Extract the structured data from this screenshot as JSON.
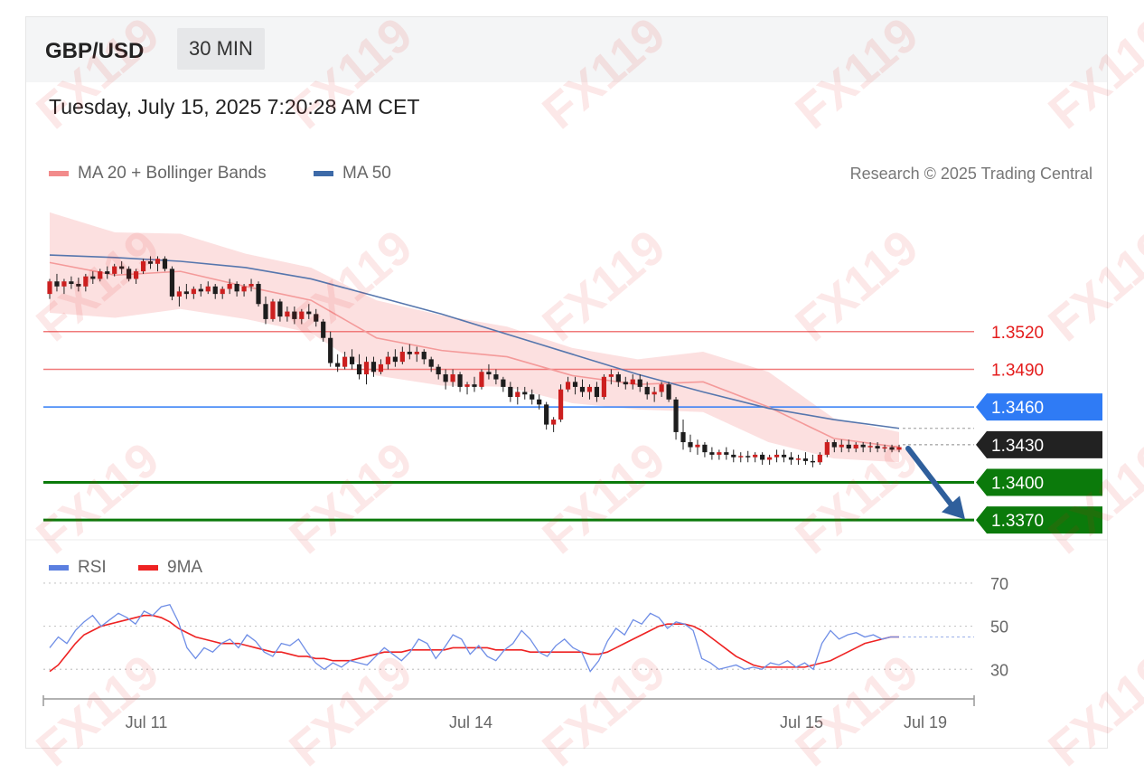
{
  "header": {
    "symbol": "GBP/USD",
    "timeframe": "30 MIN",
    "timestamp": "Tuesday, July 15, 2025 7:20:28 AM CET"
  },
  "legend": {
    "ma20": {
      "label": "MA 20 + Bollinger Bands",
      "color": "#f28b8b"
    },
    "ma50": {
      "label": "MA 50",
      "color": "#3d6aa8"
    },
    "rsi": {
      "label": "RSI",
      "color": "#5b7fe0"
    },
    "rsi_ma": {
      "label": "9MA",
      "color": "#ee2222"
    }
  },
  "credit": "Research © 2025 Trading Central",
  "watermark": "FX119",
  "chart_data": [
    {
      "type": "line",
      "subtype": "candlestick",
      "ylim": [
        1.3355,
        1.363
      ],
      "x_ticks": [
        "Jul 11",
        "Jul 14",
        "Jul 15",
        "Jul 19"
      ],
      "current_price": {
        "value": "1.3430",
        "price": 1.343,
        "color": "#222222"
      },
      "arrow": {
        "from": 1.3427,
        "to": 1.3372,
        "direction": "down",
        "color": "#2f5f9c"
      },
      "levels": [
        {
          "label": "1.3520",
          "price": 1.352,
          "kind": "resistance",
          "color": "#f07a7a",
          "text_color": "#e41c1c"
        },
        {
          "label": "1.3490",
          "price": 1.349,
          "kind": "resistance",
          "color": "#f07a7a",
          "text_color": "#e41c1c"
        },
        {
          "label": "1.3460",
          "price": 1.346,
          "kind": "pivot",
          "color": "#2f7bf5",
          "text_color": "#ffffff"
        },
        {
          "label": "1.3400",
          "price": 1.34,
          "kind": "support",
          "color": "#0b7a0b",
          "text_color": "#ffffff"
        },
        {
          "label": "1.3370",
          "price": 1.337,
          "kind": "support",
          "color": "#0b7a0b",
          "text_color": "#ffffff"
        }
      ],
      "series": [
        {
          "name": "MA 50",
          "values": [
            1.3581,
            1.3579,
            1.3576,
            1.3571,
            1.3562,
            1.3548,
            1.3534,
            1.3518,
            1.3502,
            1.3486,
            1.3472,
            1.3459,
            1.345,
            1.3443
          ]
        },
        {
          "name": "MA 20",
          "values": [
            1.3575,
            1.3565,
            1.3568,
            1.3556,
            1.3545,
            1.3515,
            1.3505,
            1.35,
            1.3485,
            1.3478,
            1.348,
            1.346,
            1.3435,
            1.3428
          ]
        }
      ],
      "candles": [
        [
          1.355,
          1.3562,
          1.3546,
          1.356
        ],
        [
          1.356,
          1.3566,
          1.3552,
          1.3556
        ],
        [
          1.3556,
          1.3562,
          1.355,
          1.356
        ],
        [
          1.356,
          1.3564,
          1.3554,
          1.3558
        ],
        [
          1.3558,
          1.3563,
          1.3552,
          1.3556
        ],
        [
          1.3556,
          1.3566,
          1.3552,
          1.3564
        ],
        [
          1.3564,
          1.3568,
          1.3558,
          1.3562
        ],
        [
          1.3562,
          1.357,
          1.356,
          1.3568
        ],
        [
          1.3568,
          1.3572,
          1.3562,
          1.3566
        ],
        [
          1.3566,
          1.3574,
          1.3564,
          1.3572
        ],
        [
          1.3572,
          1.3576,
          1.3566,
          1.357
        ],
        [
          1.357,
          1.3572,
          1.356,
          1.3562
        ],
        [
          1.3562,
          1.357,
          1.3558,
          1.3568
        ],
        [
          1.3568,
          1.3578,
          1.3566,
          1.3576
        ],
        [
          1.3576,
          1.358,
          1.357,
          1.3574
        ],
        [
          1.3574,
          1.358,
          1.3568,
          1.3578
        ],
        [
          1.3578,
          1.358,
          1.3568,
          1.357
        ],
        [
          1.357,
          1.3572,
          1.3545,
          1.3548
        ],
        [
          1.3548,
          1.3556,
          1.354,
          1.3552
        ],
        [
          1.3552,
          1.3558,
          1.3546,
          1.355
        ],
        [
          1.355,
          1.3556,
          1.3546,
          1.3554
        ],
        [
          1.3554,
          1.3558,
          1.3548,
          1.3552
        ],
        [
          1.3552,
          1.356,
          1.355,
          1.3556
        ],
        [
          1.3556,
          1.3558,
          1.3546,
          1.355
        ],
        [
          1.355,
          1.3556,
          1.3546,
          1.3554
        ],
        [
          1.3554,
          1.3562,
          1.355,
          1.3558
        ],
        [
          1.3558,
          1.356,
          1.3548,
          1.3552
        ],
        [
          1.3552,
          1.3558,
          1.3548,
          1.3556
        ],
        [
          1.3556,
          1.3562,
          1.3552,
          1.3558
        ],
        [
          1.3558,
          1.356,
          1.354,
          1.3542
        ],
        [
          1.3542,
          1.3548,
          1.3526,
          1.353
        ],
        [
          1.353,
          1.3546,
          1.3528,
          1.3544
        ],
        [
          1.3544,
          1.3546,
          1.3528,
          1.3532
        ],
        [
          1.3532,
          1.354,
          1.3528,
          1.3536
        ],
        [
          1.3536,
          1.354,
          1.3526,
          1.353
        ],
        [
          1.353,
          1.3538,
          1.3526,
          1.3536
        ],
        [
          1.3536,
          1.3542,
          1.353,
          1.3534
        ],
        [
          1.3534,
          1.3538,
          1.3524,
          1.3528
        ],
        [
          1.3528,
          1.353,
          1.3512,
          1.3515
        ],
        [
          1.3515,
          1.352,
          1.3492,
          1.3495
        ],
        [
          1.3495,
          1.3502,
          1.3488,
          1.3492
        ],
        [
          1.3492,
          1.3504,
          1.349,
          1.35
        ],
        [
          1.35,
          1.3506,
          1.349,
          1.3494
        ],
        [
          1.3494,
          1.3502,
          1.3482,
          1.3486
        ],
        [
          1.3486,
          1.35,
          1.3478,
          1.3496
        ],
        [
          1.3496,
          1.35,
          1.3484,
          1.3488
        ],
        [
          1.3488,
          1.3498,
          1.3486,
          1.3494
        ],
        [
          1.3494,
          1.3504,
          1.349,
          1.35
        ],
        [
          1.35,
          1.3506,
          1.3492,
          1.3496
        ],
        [
          1.3496,
          1.3508,
          1.3494,
          1.3504
        ],
        [
          1.3504,
          1.351,
          1.3498,
          1.3502
        ],
        [
          1.3502,
          1.3508,
          1.3496,
          1.3504
        ],
        [
          1.3504,
          1.3506,
          1.3494,
          1.3498
        ],
        [
          1.3498,
          1.35,
          1.3488,
          1.3492
        ],
        [
          1.3492,
          1.3494,
          1.3482,
          1.3486
        ],
        [
          1.3486,
          1.349,
          1.3474,
          1.348
        ],
        [
          1.348,
          1.349,
          1.3476,
          1.3486
        ],
        [
          1.3486,
          1.3488,
          1.3472,
          1.3476
        ],
        [
          1.3476,
          1.348,
          1.347,
          1.3478
        ],
        [
          1.3478,
          1.3484,
          1.3472,
          1.3476
        ],
        [
          1.3476,
          1.349,
          1.3474,
          1.3488
        ],
        [
          1.3488,
          1.3494,
          1.3482,
          1.3486
        ],
        [
          1.3486,
          1.349,
          1.3478,
          1.3482
        ],
        [
          1.3482,
          1.3484,
          1.3472,
          1.3476
        ],
        [
          1.3476,
          1.348,
          1.3464,
          1.3468
        ],
        [
          1.3468,
          1.3476,
          1.3462,
          1.3472
        ],
        [
          1.3472,
          1.3476,
          1.3466,
          1.347
        ],
        [
          1.347,
          1.3474,
          1.3462,
          1.3466
        ],
        [
          1.3466,
          1.347,
          1.3458,
          1.3462
        ],
        [
          1.3462,
          1.3464,
          1.3442,
          1.3446
        ],
        [
          1.3446,
          1.3452,
          1.344,
          1.345
        ],
        [
          1.345,
          1.3478,
          1.3448,
          1.3474
        ],
        [
          1.3474,
          1.3484,
          1.3472,
          1.348
        ],
        [
          1.348,
          1.3484,
          1.347,
          1.3476
        ],
        [
          1.3476,
          1.3482,
          1.3468,
          1.3472
        ],
        [
          1.3472,
          1.3478,
          1.3466,
          1.3476
        ],
        [
          1.3476,
          1.348,
          1.3464,
          1.3468
        ],
        [
          1.3468,
          1.3486,
          1.3466,
          1.3484
        ],
        [
          1.3484,
          1.349,
          1.3478,
          1.3486
        ],
        [
          1.3486,
          1.3488,
          1.3476,
          1.348
        ],
        [
          1.348,
          1.3484,
          1.3474,
          1.3478
        ],
        [
          1.3478,
          1.3486,
          1.3474,
          1.3482
        ],
        [
          1.3482,
          1.3486,
          1.3472,
          1.3476
        ],
        [
          1.3476,
          1.348,
          1.3466,
          1.347
        ],
        [
          1.347,
          1.3476,
          1.3464,
          1.3472
        ],
        [
          1.3472,
          1.348,
          1.3468,
          1.3478
        ],
        [
          1.3478,
          1.348,
          1.3464,
          1.3466
        ],
        [
          1.3466,
          1.3468,
          1.3434,
          1.344
        ],
        [
          1.344,
          1.345,
          1.3426,
          1.3432
        ],
        [
          1.3432,
          1.3438,
          1.3424,
          1.3428
        ],
        [
          1.3428,
          1.3434,
          1.3422,
          1.343
        ],
        [
          1.343,
          1.3432,
          1.342,
          1.3424
        ],
        [
          1.3424,
          1.3428,
          1.3418,
          1.3422
        ],
        [
          1.3422,
          1.3426,
          1.3418,
          1.3424
        ],
        [
          1.3424,
          1.3428,
          1.3418,
          1.3422
        ],
        [
          1.3422,
          1.3426,
          1.3416,
          1.342
        ],
        [
          1.342,
          1.3424,
          1.3416,
          1.3421
        ],
        [
          1.3421,
          1.3425,
          1.3416,
          1.342
        ],
        [
          1.342,
          1.3424,
          1.3416,
          1.3422
        ],
        [
          1.3422,
          1.3424,
          1.3414,
          1.3418
        ],
        [
          1.3418,
          1.3422,
          1.3414,
          1.342
        ],
        [
          1.342,
          1.3426,
          1.3416,
          1.3422
        ],
        [
          1.3422,
          1.3426,
          1.3416,
          1.342
        ],
        [
          1.342,
          1.3424,
          1.3414,
          1.3418
        ],
        [
          1.3418,
          1.3422,
          1.3414,
          1.3419
        ],
        [
          1.3419,
          1.3424,
          1.3414,
          1.3417
        ],
        [
          1.3417,
          1.3422,
          1.3412,
          1.3416
        ],
        [
          1.3416,
          1.3424,
          1.3414,
          1.3422
        ],
        [
          1.3422,
          1.3434,
          1.342,
          1.3432
        ],
        [
          1.3432,
          1.3434,
          1.3424,
          1.3428
        ],
        [
          1.3428,
          1.3434,
          1.3424,
          1.343
        ],
        [
          1.343,
          1.3434,
          1.3424,
          1.3427
        ],
        [
          1.3427,
          1.3432,
          1.3424,
          1.343
        ],
        [
          1.343,
          1.3432,
          1.3424,
          1.3428
        ],
        [
          1.3428,
          1.3432,
          1.3424,
          1.3429
        ],
        [
          1.3429,
          1.3432,
          1.3424,
          1.3427
        ],
        [
          1.3427,
          1.343,
          1.3424,
          1.3428
        ],
        [
          1.3428,
          1.343,
          1.3424,
          1.3426
        ],
        [
          1.3426,
          1.343,
          1.3424,
          1.3428
        ]
      ]
    },
    {
      "type": "line",
      "subtype": "rsi",
      "ylim": [
        15,
        75
      ],
      "y_ticks": [
        "70",
        "50",
        "30"
      ],
      "reference_lines": [
        70,
        50,
        30
      ],
      "current_value": 45,
      "series": [
        {
          "name": "RSI",
          "values": [
            40,
            45,
            42,
            48,
            52,
            55,
            50,
            53,
            56,
            54,
            51,
            57,
            55,
            59,
            60,
            52,
            40,
            35,
            40,
            38,
            42,
            44,
            40,
            46,
            43,
            38,
            36,
            42,
            41,
            44,
            38,
            33,
            30,
            33,
            31,
            34,
            33,
            32,
            36,
            40,
            37,
            34,
            38,
            44,
            42,
            35,
            40,
            46,
            44,
            37,
            41,
            36,
            34,
            39,
            42,
            48,
            44,
            38,
            36,
            41,
            44,
            40,
            38,
            29,
            34,
            43,
            49,
            46,
            53,
            51,
            56,
            54,
            49,
            52,
            51,
            48,
            35,
            33,
            30,
            31,
            32,
            30,
            31,
            30,
            33,
            32,
            34,
            31,
            33,
            30,
            42,
            48,
            44,
            46,
            47,
            45,
            46,
            44,
            45,
            45
          ]
        },
        {
          "name": "9MA",
          "values": [
            29,
            32,
            37,
            42,
            46,
            48,
            50,
            51,
            52,
            53,
            54,
            55,
            55,
            54,
            52,
            49,
            47,
            45,
            44,
            43,
            42,
            42,
            42,
            41,
            40,
            39,
            38,
            38,
            37,
            36,
            36,
            35,
            35,
            34,
            34,
            34,
            35,
            36,
            37,
            38,
            38,
            38,
            39,
            39,
            39,
            39,
            39,
            40,
            40,
            40,
            40,
            40,
            39,
            39,
            39,
            39,
            38,
            38,
            38,
            38,
            38,
            38,
            38,
            37,
            37,
            38,
            40,
            42,
            44,
            46,
            48,
            50,
            51,
            51,
            51,
            50,
            48,
            45,
            42,
            39,
            36,
            34,
            32,
            31,
            31,
            31,
            31,
            31,
            31,
            32,
            33,
            34,
            36,
            38,
            40,
            42,
            43,
            44,
            45,
            45
          ]
        }
      ]
    }
  ]
}
